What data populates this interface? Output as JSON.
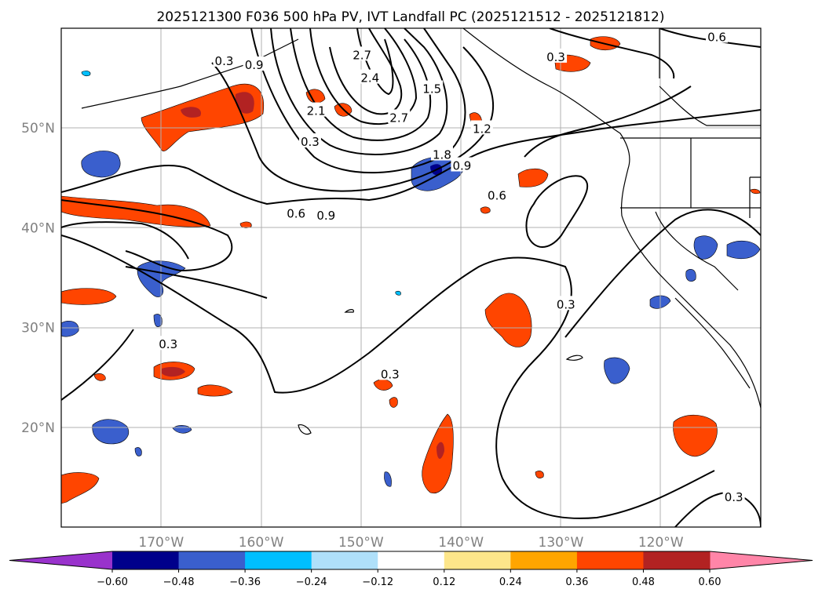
{
  "chart_data": {
    "type": "contour-map",
    "title": "2025121300 F036 500 hPa PV, IVT Landfall PC (2025121512 - 2025121812)",
    "extent": {
      "lon": [
        -180,
        -110
      ],
      "lat": [
        10,
        60
      ]
    },
    "x_ticks": [
      {
        "value": -170,
        "label": "170°W"
      },
      {
        "value": -160,
        "label": "160°W"
      },
      {
        "value": -150,
        "label": "150°W"
      },
      {
        "value": -140,
        "label": "140°W"
      },
      {
        "value": -130,
        "label": "130°W"
      },
      {
        "value": -120,
        "label": "120°W"
      }
    ],
    "y_ticks": [
      {
        "value": 20,
        "label": "20°N"
      },
      {
        "value": 30,
        "label": "30°N"
      },
      {
        "value": 40,
        "label": "40°N"
      },
      {
        "value": 50,
        "label": "50°N"
      }
    ],
    "grid": true,
    "colorbar": {
      "orientation": "horizontal",
      "extend": "both",
      "levels": [
        -0.6,
        -0.48,
        -0.36,
        -0.24,
        -0.12,
        0.12,
        0.24,
        0.36,
        0.48,
        0.6
      ],
      "tick_labels": [
        "−0.60",
        "−0.48",
        "−0.36",
        "−0.24",
        "−0.12",
        "0.12",
        "0.24",
        "0.36",
        "0.48",
        "0.60"
      ],
      "colors": [
        "#9932cc",
        "#00008b",
        "#3a5fcd",
        "#00bfff",
        "#afe0fa",
        "#ffffff",
        "#fde68a",
        "#ffa500",
        "#ff4500",
        "#b22222",
        "#ff85a8"
      ]
    },
    "contour_labels": [
      {
        "text": "0.6",
        "lon": -156.5,
        "lat": 41.4
      },
      {
        "text": "0.6",
        "lon": -136.4,
        "lat": 43.2
      },
      {
        "text": "0.6",
        "lon": -114.4,
        "lat": 59.1
      },
      {
        "text": "0.9",
        "lon": -160.7,
        "lat": 56.3
      },
      {
        "text": "0.9",
        "lon": -153.5,
        "lat": 41.2
      },
      {
        "text": "0.9",
        "lon": -139.9,
        "lat": 46.2
      },
      {
        "text": "0.3",
        "lon": -155.1,
        "lat": 48.6
      },
      {
        "text": "0.3",
        "lon": -163.7,
        "lat": 56.7
      },
      {
        "text": "0.3",
        "lon": -130.5,
        "lat": 57.1
      },
      {
        "text": "0.3",
        "lon": -129.5,
        "lat": 32.3
      },
      {
        "text": "0.3",
        "lon": -147.1,
        "lat": 25.3
      },
      {
        "text": "0.3",
        "lon": -169.3,
        "lat": 28.3
      },
      {
        "text": "0.3",
        "lon": -112.7,
        "lat": 13.0
      },
      {
        "text": "1.2",
        "lon": -137.9,
        "lat": 49.9
      },
      {
        "text": "1.5",
        "lon": -142.9,
        "lat": 53.9
      },
      {
        "text": "1.8",
        "lon": -141.9,
        "lat": 47.3
      },
      {
        "text": "2.1",
        "lon": -154.5,
        "lat": 51.7
      },
      {
        "text": "2.4",
        "lon": -149.1,
        "lat": 55.0
      },
      {
        "text": "2.7",
        "lon": -149.9,
        "lat": 57.3
      },
      {
        "text": "2.7",
        "lon": -146.2,
        "lat": 51.0
      }
    ]
  }
}
